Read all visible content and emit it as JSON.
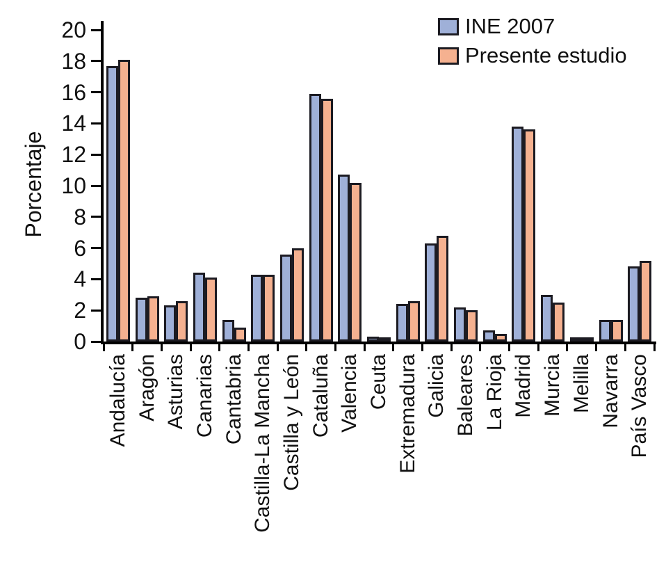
{
  "chart_data": {
    "type": "bar",
    "title": "",
    "xlabel": "",
    "ylabel": "Porcentaje",
    "categories": [
      "Andalucía",
      "Aragón",
      "Asturias",
      "Canarias",
      "Cantabria",
      "Castilla-La Mancha",
      "Castilla y León",
      "Cataluña",
      "Valencia",
      "Ceuta",
      "Extremadura",
      "Galicia",
      "Baleares",
      "La Rioja",
      "Madrid",
      "Murcia",
      "Melilla",
      "Navarra",
      "País Vasco"
    ],
    "series": [
      {
        "name": "INE 2007",
        "color": "#9fb0d8",
        "values": [
          17.7,
          2.8,
          2.3,
          4.4,
          1.4,
          4.3,
          5.6,
          15.9,
          10.7,
          0.3,
          2.4,
          6.3,
          2.2,
          0.7,
          13.8,
          3.0,
          0.2,
          1.4,
          4.8
        ]
      },
      {
        "name": "Presente estudio",
        "color": "#f5b190",
        "values": [
          18.1,
          2.9,
          2.6,
          4.1,
          0.9,
          4.3,
          6.0,
          15.6,
          10.2,
          0.25,
          2.6,
          6.8,
          2.0,
          0.5,
          13.6,
          2.5,
          0.2,
          1.4,
          5.2
        ]
      }
    ],
    "ylim": [
      0,
      20
    ],
    "y_ticks": [
      0,
      2,
      4,
      6,
      8,
      10,
      12,
      14,
      16,
      18,
      20
    ],
    "grid": false,
    "legend_position": "top-right",
    "bar_outline_color": "#1c1b22",
    "axis_color": "#000000"
  }
}
